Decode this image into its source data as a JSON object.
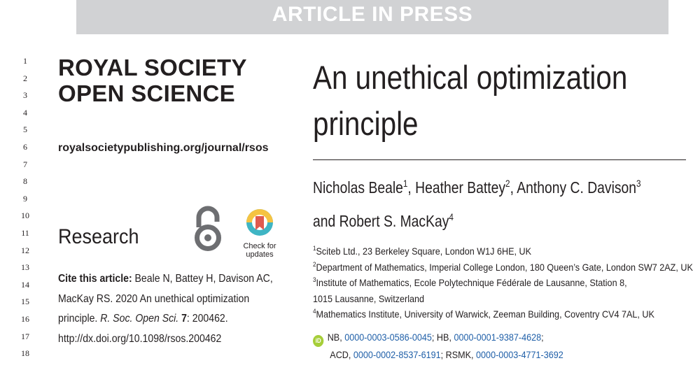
{
  "banner": "ARTICLE IN PRESS",
  "line_numbers": [
    "1",
    "2",
    "3",
    "4",
    "5",
    "6",
    "7",
    "8",
    "9",
    "10",
    "11",
    "12",
    "13",
    "14",
    "15",
    "16",
    "17",
    "18"
  ],
  "journal": {
    "name_line1": "ROYAL SOCIETY",
    "name_line2": "OPEN SCIENCE",
    "url": "royalsocietypublishing.org/journal/rsos"
  },
  "section": "Research",
  "badges": {
    "open_access_icon": "open-access-lock-icon",
    "check_updates_line1": "Check for",
    "check_updates_line2": "updates"
  },
  "citation": {
    "label": "Cite this article:",
    "authors": " Beale N, Battey H, Davison AC,",
    "line2": "MacKay RS. 2020 An unethical optimization",
    "line3_pre": "principle. ",
    "journal_abbrev": "R. Soc. Open Sci.",
    "volume": "7",
    "line3_post": ": 200462.",
    "doi": "http://dx.doi.org/10.1098/rsos.200462"
  },
  "article": {
    "title_line1": "An unethical optimization",
    "title_line2": "principle",
    "authors": [
      {
        "name": "Nicholas Beale",
        "sup": "1"
      },
      {
        "name": "Heather Battey",
        "sup": "2"
      },
      {
        "name": "Anthony C. Davison",
        "sup": "3"
      },
      {
        "name": "Robert S. MacKay",
        "sup": "4"
      }
    ],
    "author_sep": ", ",
    "author_and": "and ",
    "affiliations": [
      {
        "sup": "1",
        "text": "Sciteb Ltd., 23 Berkeley Square, London W1J 6HE, UK"
      },
      {
        "sup": "2",
        "text": "Department of Mathematics, Imperial College London, 180 Queen’s Gate, London SW7 2AZ, UK"
      },
      {
        "sup": "3",
        "text": "Institute of Mathematics, Ecole Polytechnique Fédérale de Lausanne, Station 8,"
      },
      {
        "sup": "",
        "text": "1015 Lausanne, Switzerland"
      },
      {
        "sup": "4",
        "text": "Mathematics Institute, University of Warwick, Zeeman Building, Coventry CV4 7AL, UK"
      }
    ],
    "orcid": {
      "badge": "iD",
      "entries": [
        {
          "initials": "NB",
          "id": "0000-0003-0586-0045"
        },
        {
          "initials": "HB",
          "id": "0000-0001-9387-4628"
        },
        {
          "initials": "ACD",
          "id": "0000-0002-8537-6191"
        },
        {
          "initials": "RSMK",
          "id": "0000-0003-4771-3692"
        }
      ]
    }
  },
  "colors": {
    "banner_bg": "#d1d2d4",
    "text": "#231f20",
    "link": "#1f5fa8",
    "orcid_green": "#a6ce39",
    "crossmark_teal": "#3fb5c4",
    "crossmark_yellow": "#f5c342",
    "crossmark_red": "#e05a4e"
  }
}
